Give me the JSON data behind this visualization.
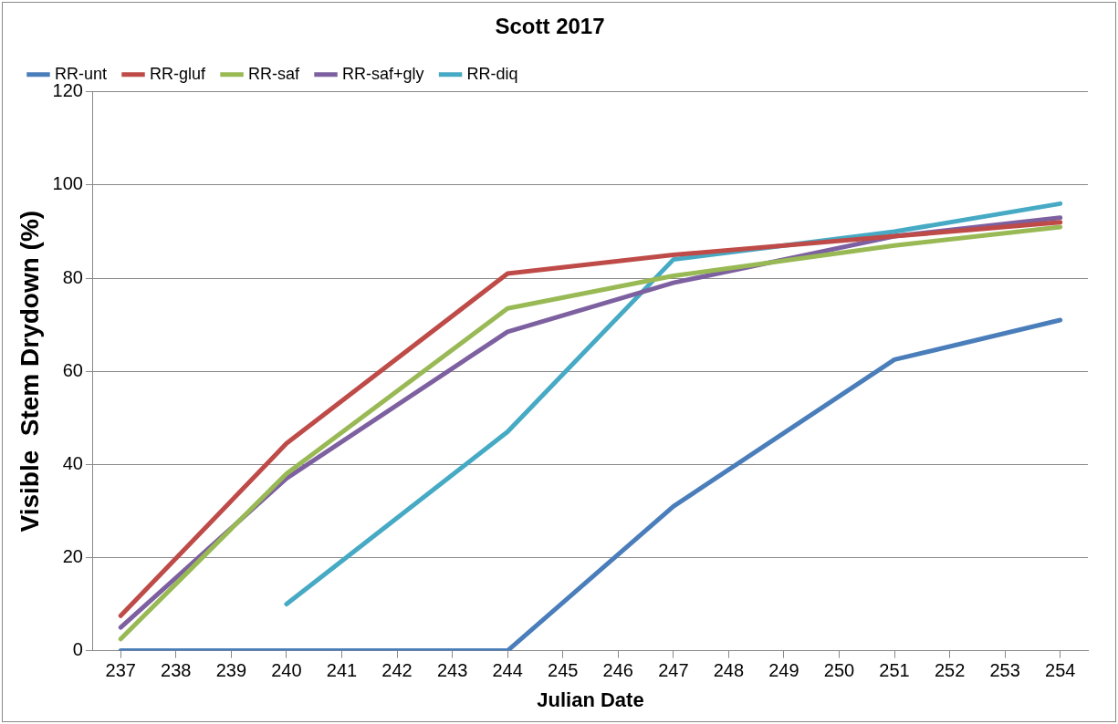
{
  "chart_data": {
    "type": "line",
    "title": "Scott 2017",
    "xlabel": "Julian Date",
    "ylabel": "Visible  Stem Drydown (%)",
    "x": [
      237,
      240,
      244,
      247,
      251,
      254
    ],
    "xlim": [
      236.5,
      254.5
    ],
    "xticks": [
      237,
      238,
      239,
      240,
      241,
      242,
      243,
      244,
      245,
      246,
      247,
      248,
      249,
      250,
      251,
      252,
      253,
      254
    ],
    "ylim": [
      0,
      120
    ],
    "yticks": [
      0,
      20,
      40,
      60,
      80,
      100,
      120
    ],
    "grid": "y",
    "legend": "top",
    "marker": "none",
    "line_style": "solid",
    "series": [
      {
        "name": "RR-unt",
        "color": "#4a7ebb",
        "values": [
          0,
          0,
          0,
          31,
          62.5,
          71
        ]
      },
      {
        "name": "RR-gluf",
        "color": "#be4b48",
        "values": [
          7.5,
          44.5,
          81,
          85,
          89,
          92
        ]
      },
      {
        "name": "RR-saf",
        "color": "#98b954",
        "values": [
          2.5,
          38,
          73.5,
          80.5,
          87,
          91
        ]
      },
      {
        "name": "RR-saf+gly",
        "color": "#7d60a0",
        "values": [
          5,
          37,
          68.5,
          79,
          89,
          93
        ]
      },
      {
        "name": "RR-diq",
        "color": "#46aac5",
        "values": [
          null,
          10,
          47,
          84,
          90,
          96
        ]
      }
    ]
  }
}
